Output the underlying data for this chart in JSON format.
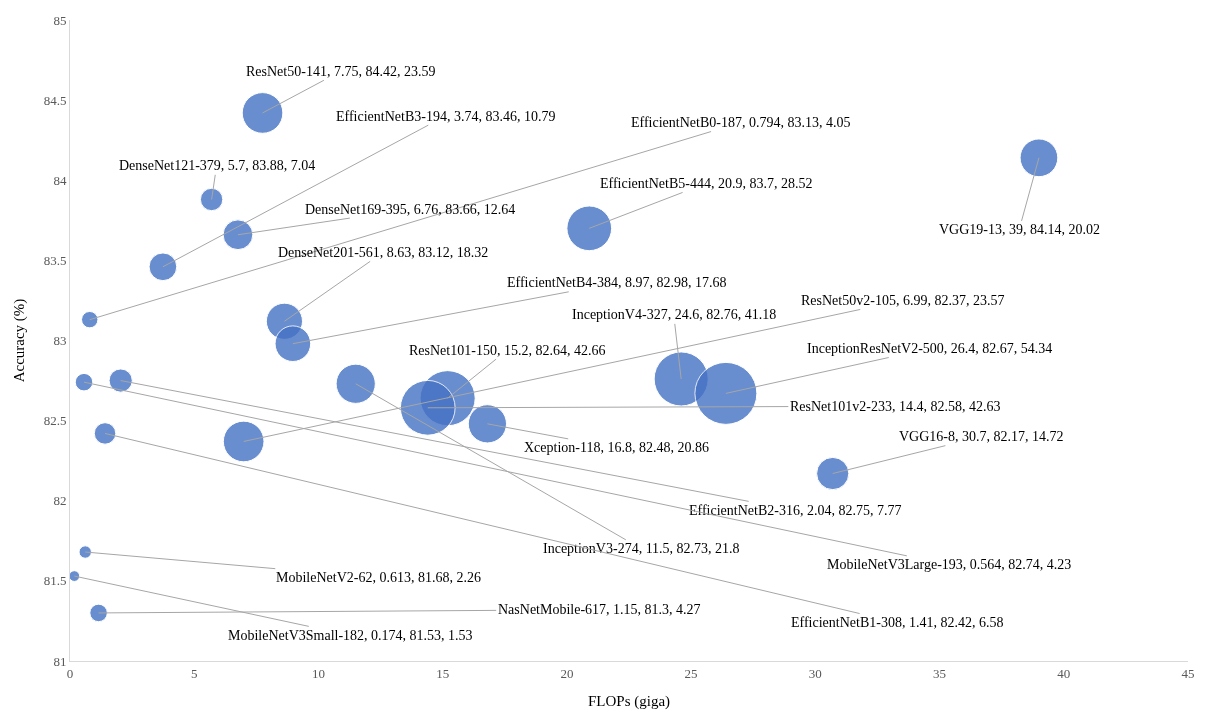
{
  "chart_data": {
    "type": "bubble",
    "xlabel": "FLOPs (giga)",
    "ylabel": "Accuracy (%)",
    "xlim": [
      0,
      45
    ],
    "xticks": [
      0,
      5,
      10,
      15,
      20,
      25,
      30,
      35,
      40,
      45
    ],
    "ylim": [
      81,
      85
    ],
    "yticks": [
      81,
      81.5,
      82,
      82.5,
      83,
      83.5,
      84,
      84.5,
      85
    ],
    "series": [
      {
        "color": "#4472c4",
        "x": [
          7.75,
          3.74,
          0.794,
          5.7,
          20.9,
          6.76,
          39,
          8.63,
          8.97,
          6.99,
          24.6,
          26.4,
          15.2,
          14.4,
          16.8,
          30.7,
          2.04,
          11.5,
          0.564,
          0.613,
          1.15,
          1.41,
          0.174
        ],
        "values": [
          84.42,
          83.46,
          83.13,
          83.88,
          83.7,
          83.66,
          84.14,
          83.12,
          82.98,
          82.37,
          82.76,
          82.67,
          82.64,
          82.58,
          82.48,
          82.17,
          82.75,
          82.73,
          82.74,
          81.68,
          81.3,
          82.42,
          81.53
        ],
        "sizes": [
          0.43,
          0.2,
          0.07,
          0.13,
          0.52,
          0.23,
          0.37,
          0.34,
          0.33,
          0.43,
          0.76,
          1,
          0.79,
          0.78,
          0.38,
          0.27,
          0.14,
          0.4,
          0.08,
          0.04,
          0.08,
          0.12,
          0.03
        ]
      }
    ],
    "annotations": [
      {
        "text": "ResNet50-141, 7.75, 84.42, 23.59",
        "x": 7.75,
        "y": 84.42
      },
      {
        "text": "EfficientNetB3-194, 3.74, 83.46, 10.79",
        "x": 3.74,
        "y": 83.46
      },
      {
        "text": "EfficientNetB0-187, 0.794, 83.13, 4.05",
        "x": 0.794,
        "y": 83.13
      },
      {
        "text": "DenseNet121-379, 5.7, 83.88, 7.04",
        "x": 5.7,
        "y": 83.88
      },
      {
        "text": "EfficientNetB5-444, 20.9, 83.7, 28.52",
        "x": 20.9,
        "y": 83.7
      },
      {
        "text": "DenseNet169-395, 6.76, 83.66, 12.64",
        "x": 6.76,
        "y": 83.66
      },
      {
        "text": "VGG19-13, 39, 84.14, 20.02",
        "x": 39,
        "y": 84.14
      },
      {
        "text": "DenseNet201-561, 8.63, 83.12, 18.32",
        "x": 8.63,
        "y": 83.12
      },
      {
        "text": "EfficientNetB4-384, 8.97, 82.98, 17.68",
        "x": 8.97,
        "y": 82.98
      },
      {
        "text": "ResNet50v2-105, 6.99, 82.37, 23.57",
        "x": 6.99,
        "y": 82.37
      },
      {
        "text": "InceptionV4-327, 24.6, 82.76, 41.18",
        "x": 24.6,
        "y": 82.76
      },
      {
        "text": "InceptionResNetV2-500, 26.4, 82.67, 54.34",
        "x": 26.4,
        "y": 82.67
      },
      {
        "text": "ResNet101-150, 15.2, 82.64, 42.66",
        "x": 15.2,
        "y": 82.64
      },
      {
        "text": "ResNet101v2-233, 14.4, 82.58, 42.63",
        "x": 14.4,
        "y": 82.58
      },
      {
        "text": "Xception-118, 16.8, 82.48, 20.86",
        "x": 16.8,
        "y": 82.48
      },
      {
        "text": "VGG16-8, 30.7, 82.17, 14.72",
        "x": 30.7,
        "y": 82.17
      },
      {
        "text": "EfficientNetB2-316, 2.04, 82.75, 7.77",
        "x": 2.04,
        "y": 82.75
      },
      {
        "text": "InceptionV3-274, 11.5, 82.73, 21.8",
        "x": 11.5,
        "y": 82.73
      },
      {
        "text": "MobileNetV3Large-193, 0.564, 82.74, 4.23",
        "x": 0.564,
        "y": 82.74
      },
      {
        "text": "MobileNetV2-62, 0.613, 81.68, 2.26",
        "x": 0.613,
        "y": 81.68
      },
      {
        "text": "NasNetMobile-617, 1.15, 81.3, 4.27",
        "x": 1.15,
        "y": 81.3
      },
      {
        "text": "EfficientNetB1-308, 1.41, 82.42, 6.58",
        "x": 1.41,
        "y": 82.42
      },
      {
        "text": "MobileNetV3Small-182, 0.174, 81.53, 1.53",
        "x": 0.174,
        "y": 81.53
      }
    ]
  }
}
